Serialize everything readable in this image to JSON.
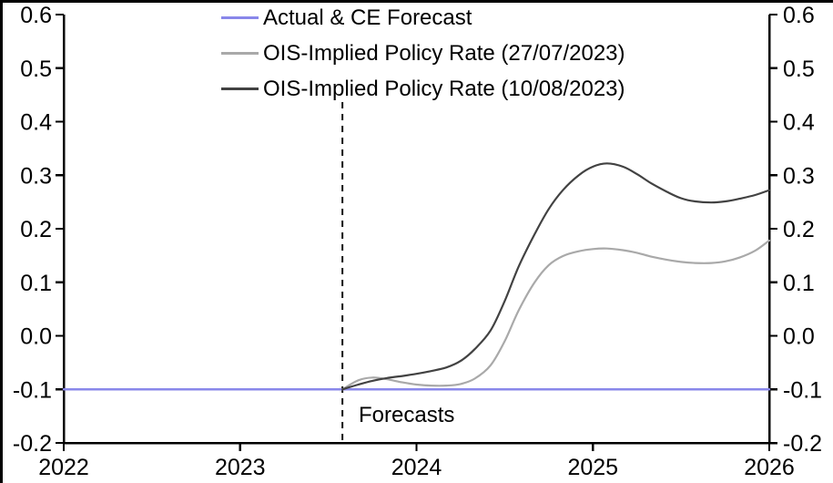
{
  "chart_data": {
    "type": "line",
    "title": "",
    "x_axis": {
      "min": 2022,
      "max": 2026,
      "tick_values": [
        2022,
        2023,
        2024,
        2025,
        2026
      ],
      "tick_labels": [
        "2022",
        "2023",
        "2024",
        "2025",
        "2026"
      ]
    },
    "y_axis_left": {
      "min": -0.2,
      "max": 0.6,
      "tick_values": [
        0.6,
        0.5,
        0.4,
        0.3,
        0.2,
        0.1,
        0.0,
        -0.1,
        -0.2
      ],
      "tick_labels": [
        "0.6",
        "0.5",
        "0.4",
        "0.3",
        "0.2",
        "0.1",
        "0.0",
        "-0.1",
        "-0.2"
      ]
    },
    "y_axis_right": {
      "min": -0.2,
      "max": 0.6,
      "tick_values": [
        0.6,
        0.5,
        0.4,
        0.3,
        0.2,
        0.1,
        0.0,
        -0.1,
        -0.2
      ],
      "tick_labels": [
        "0.6",
        "0.5",
        "0.4",
        "0.3",
        "0.2",
        "0.1",
        "0.0",
        "-0.1",
        "-0.2"
      ]
    },
    "grid": false,
    "legend_position": "top-center",
    "series": [
      {
        "name": "Actual & CE Forecast",
        "color": "#8987ea",
        "stroke_width": 2.5,
        "smooth": false,
        "points": [
          [
            2022.0,
            -0.1
          ],
          [
            2026.0,
            -0.1
          ]
        ]
      },
      {
        "name": "OIS-Implied Policy Rate (27/07/2023)",
        "color": "#a9a9a9",
        "stroke_width": 2.2,
        "smooth": true,
        "points": [
          [
            2023.58,
            -0.1
          ],
          [
            2023.67,
            -0.083
          ],
          [
            2023.75,
            -0.078
          ],
          [
            2023.83,
            -0.081
          ],
          [
            2023.92,
            -0.087
          ],
          [
            2024.0,
            -0.091
          ],
          [
            2024.08,
            -0.093
          ],
          [
            2024.17,
            -0.093
          ],
          [
            2024.25,
            -0.09
          ],
          [
            2024.33,
            -0.08
          ],
          [
            2024.42,
            -0.055
          ],
          [
            2024.5,
            -0.01
          ],
          [
            2024.58,
            0.048
          ],
          [
            2024.67,
            0.1
          ],
          [
            2024.75,
            0.132
          ],
          [
            2024.83,
            0.149
          ],
          [
            2024.92,
            0.158
          ],
          [
            2025.0,
            0.162
          ],
          [
            2025.08,
            0.163
          ],
          [
            2025.17,
            0.16
          ],
          [
            2025.25,
            0.155
          ],
          [
            2025.33,
            0.148
          ],
          [
            2025.42,
            0.142
          ],
          [
            2025.5,
            0.138
          ],
          [
            2025.58,
            0.136
          ],
          [
            2025.67,
            0.136
          ],
          [
            2025.75,
            0.139
          ],
          [
            2025.83,
            0.146
          ],
          [
            2025.92,
            0.159
          ],
          [
            2026.0,
            0.178
          ]
        ]
      },
      {
        "name": "OIS-Implied Policy Rate (10/08/2023)",
        "color": "#424242",
        "stroke_width": 2.2,
        "smooth": true,
        "points": [
          [
            2023.58,
            -0.1
          ],
          [
            2023.67,
            -0.091
          ],
          [
            2023.75,
            -0.084
          ],
          [
            2023.83,
            -0.079
          ],
          [
            2023.92,
            -0.075
          ],
          [
            2024.0,
            -0.071
          ],
          [
            2024.08,
            -0.066
          ],
          [
            2024.17,
            -0.059
          ],
          [
            2024.25,
            -0.047
          ],
          [
            2024.33,
            -0.025
          ],
          [
            2024.42,
            0.01
          ],
          [
            2024.5,
            0.065
          ],
          [
            2024.58,
            0.13
          ],
          [
            2024.67,
            0.19
          ],
          [
            2024.75,
            0.237
          ],
          [
            2024.83,
            0.272
          ],
          [
            2024.92,
            0.3
          ],
          [
            2025.0,
            0.316
          ],
          [
            2025.08,
            0.322
          ],
          [
            2025.17,
            0.316
          ],
          [
            2025.25,
            0.302
          ],
          [
            2025.33,
            0.285
          ],
          [
            2025.42,
            0.269
          ],
          [
            2025.5,
            0.257
          ],
          [
            2025.58,
            0.251
          ],
          [
            2025.67,
            0.249
          ],
          [
            2025.75,
            0.251
          ],
          [
            2025.83,
            0.256
          ],
          [
            2025.92,
            0.263
          ],
          [
            2026.0,
            0.272
          ]
        ]
      }
    ],
    "annotations": {
      "forecast_divider": {
        "x": 2023.58,
        "style": "dashed",
        "color": "#111111",
        "label": "Forecasts"
      }
    },
    "colors": {
      "axis": "#000000",
      "text": "#000000",
      "frame": "#000000",
      "background": "#ffffff"
    }
  }
}
